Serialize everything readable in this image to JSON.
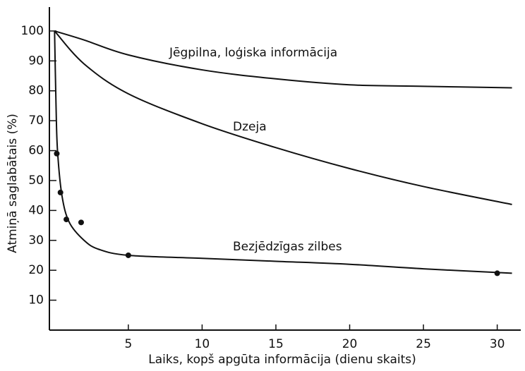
{
  "chart_data": {
    "type": "line",
    "xlabel": "Laiks, kopš apgūta informācija (dienu skaits)",
    "ylabel": "Atmiņā saglabātais (%)",
    "xlim": [
      -0.35,
      31.5
    ],
    "xticks": [
      5,
      10,
      15,
      20,
      25,
      30
    ],
    "ylim": [
      0,
      108
    ],
    "yticks": [
      10,
      20,
      30,
      40,
      50,
      60,
      70,
      80,
      90,
      100
    ],
    "series": [
      {
        "name": "Jēgpilna, loģiska informācija",
        "color": "#111111",
        "x": [
          0,
          2,
          5,
          10,
          15,
          20,
          25,
          31
        ],
        "values": [
          100,
          97,
          92,
          87,
          84,
          82,
          81.5,
          81
        ]
      },
      {
        "name": "Dzeja",
        "color": "#111111",
        "x": [
          0,
          2,
          5,
          10,
          15,
          20,
          25,
          31
        ],
        "values": [
          100,
          89,
          79,
          69,
          61,
          54,
          48,
          42
        ]
      },
      {
        "name": "Bezjēdzīgas zilbes",
        "color": "#111111",
        "x": [
          0,
          0.1,
          0.2,
          0.5,
          1,
          2,
          3,
          5,
          10,
          15,
          20,
          25,
          31
        ],
        "values": [
          100,
          75,
          60,
          45,
          36,
          30,
          27,
          25,
          24,
          23,
          22,
          20.5,
          19
        ]
      }
    ],
    "points": {
      "x": [
        0.15,
        0.4,
        0.8,
        1.8,
        5,
        30
      ],
      "values": [
        59,
        46,
        37,
        36,
        25,
        19
      ]
    }
  }
}
